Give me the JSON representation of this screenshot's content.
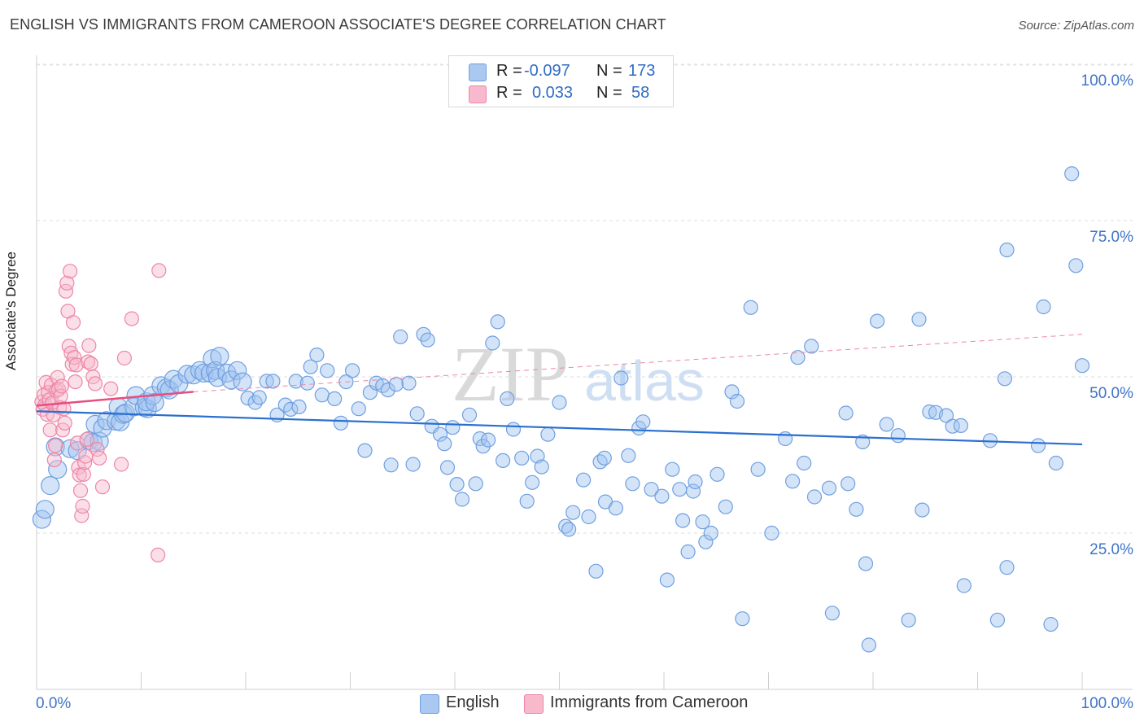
{
  "header": {
    "title": "ENGLISH VS IMMIGRANTS FROM CAMEROON ASSOCIATE'S DEGREE CORRELATION CHART",
    "source": "Source: ZipAtlas.com"
  },
  "watermark": {
    "zip": "ZIP",
    "atlas": "atlas"
  },
  "legend": {
    "rows": [
      {
        "r_label": "R =",
        "r_value": "-0.097",
        "n_label": "N =",
        "n_value": "173",
        "color": "#aac8f0"
      },
      {
        "r_label": "R =",
        "r_value": "0.033",
        "n_label": "N =",
        "n_value": "58",
        "color": "#f7b9cb"
      }
    ]
  },
  "bottom_legend": {
    "english": "English",
    "cameroon": "Immigrants from Cameroon"
  },
  "chart_data": {
    "type": "scatter",
    "title": "ENGLISH VS IMMIGRANTS FROM CAMEROON ASSOCIATE'S DEGREE CORRELATION CHART",
    "xlabel": "",
    "ylabel": "Associate's Degree",
    "xlim": [
      0,
      100
    ],
    "ylim": [
      0,
      100
    ],
    "x_tick_labels": [
      "0.0%",
      "100.0%"
    ],
    "y_tick_labels": [
      "25.0%",
      "50.0%",
      "75.0%",
      "100.0%"
    ],
    "y_ticks": [
      25,
      50,
      75,
      100
    ],
    "grid": "horizontal dashed",
    "legend_position": "top-center",
    "series": [
      {
        "name": "English",
        "color": "#6f9fe0",
        "fill": "rgba(160,195,240,0.45)",
        "trend": {
          "x0": 0,
          "y0": 44.5,
          "x1": 100,
          "y1": 39.2
        },
        "points": [
          [
            0.5,
            27.2
          ],
          [
            0.8,
            28.8
          ],
          [
            1.3,
            32.6
          ],
          [
            1.8,
            38.8
          ],
          [
            2.0,
            35.2
          ],
          [
            3.2,
            38.5
          ],
          [
            3.9,
            38.2
          ],
          [
            5.0,
            39.8
          ],
          [
            5.4,
            39.5
          ],
          [
            6.0,
            39.7
          ],
          [
            5.6,
            42.4
          ],
          [
            6.3,
            41.8
          ],
          [
            6.7,
            43.0
          ],
          [
            7.6,
            42.9
          ],
          [
            8.0,
            42.8
          ],
          [
            7.8,
            45.2
          ],
          [
            8.3,
            44.0
          ],
          [
            8.5,
            44.2
          ],
          [
            9.3,
            45.2
          ],
          [
            9.5,
            47.0
          ],
          [
            10.3,
            45.1
          ],
          [
            10.6,
            44.9
          ],
          [
            10.5,
            46.0
          ],
          [
            11.1,
            47.0
          ],
          [
            11.3,
            45.9
          ],
          [
            11.9,
            48.6
          ],
          [
            12.4,
            48.2
          ],
          [
            12.7,
            47.9
          ],
          [
            13.1,
            49.6
          ],
          [
            13.6,
            48.9
          ],
          [
            14.4,
            50.4
          ],
          [
            15.0,
            50.3
          ],
          [
            15.6,
            51.0
          ],
          [
            16.0,
            50.6
          ],
          [
            16.6,
            50.6
          ],
          [
            16.8,
            52.9
          ],
          [
            17.1,
            51.0
          ],
          [
            17.5,
            53.3
          ],
          [
            17.3,
            49.9
          ],
          [
            18.2,
            50.6
          ],
          [
            18.6,
            49.5
          ],
          [
            19.2,
            51.0
          ],
          [
            19.7,
            49.2
          ],
          [
            20.2,
            46.6
          ],
          [
            20.9,
            45.9
          ],
          [
            21.3,
            46.7
          ],
          [
            22.0,
            49.3
          ],
          [
            22.6,
            49.3
          ],
          [
            23.0,
            43.9
          ],
          [
            23.8,
            45.5
          ],
          [
            24.3,
            44.8
          ],
          [
            25.1,
            45.2
          ],
          [
            24.8,
            49.3
          ],
          [
            25.9,
            49.0
          ],
          [
            26.2,
            51.6
          ],
          [
            26.8,
            53.5
          ],
          [
            27.3,
            47.1
          ],
          [
            27.8,
            51.0
          ],
          [
            28.5,
            46.5
          ],
          [
            29.1,
            42.6
          ],
          [
            29.6,
            49.2
          ],
          [
            30.2,
            51.0
          ],
          [
            30.8,
            44.9
          ],
          [
            31.4,
            38.2
          ],
          [
            31.9,
            47.5
          ],
          [
            32.5,
            49.0
          ],
          [
            33.1,
            48.6
          ],
          [
            33.6,
            47.9
          ],
          [
            33.9,
            35.9
          ],
          [
            34.4,
            48.8
          ],
          [
            34.8,
            56.4
          ],
          [
            35.6,
            49.0
          ],
          [
            36.0,
            36.0
          ],
          [
            36.4,
            44.1
          ],
          [
            37.0,
            56.8
          ],
          [
            37.4,
            55.9
          ],
          [
            37.8,
            42.1
          ],
          [
            38.6,
            40.8
          ],
          [
            39.0,
            39.3
          ],
          [
            39.3,
            35.5
          ],
          [
            39.8,
            41.9
          ],
          [
            40.2,
            32.8
          ],
          [
            40.7,
            30.4
          ],
          [
            41.4,
            43.9
          ],
          [
            42.0,
            32.9
          ],
          [
            42.4,
            40.1
          ],
          [
            42.7,
            38.9
          ],
          [
            43.2,
            39.9
          ],
          [
            43.6,
            55.4
          ],
          [
            44.1,
            58.8
          ],
          [
            44.6,
            36.6
          ],
          [
            45.0,
            46.5
          ],
          [
            45.6,
            41.6
          ],
          [
            46.4,
            37.0
          ],
          [
            46.9,
            30.1
          ],
          [
            47.4,
            33.1
          ],
          [
            47.9,
            37.3
          ],
          [
            48.3,
            35.6
          ],
          [
            48.9,
            40.8
          ],
          [
            50.0,
            45.9
          ],
          [
            50.6,
            26.1
          ],
          [
            50.9,
            25.6
          ],
          [
            51.3,
            28.3
          ],
          [
            52.3,
            33.5
          ],
          [
            52.8,
            27.6
          ],
          [
            53.5,
            18.9
          ],
          [
            53.9,
            36.4
          ],
          [
            54.3,
            37.0
          ],
          [
            54.4,
            30.0
          ],
          [
            55.4,
            29.0
          ],
          [
            55.9,
            49.8
          ],
          [
            56.6,
            37.4
          ],
          [
            57.0,
            32.9
          ],
          [
            57.6,
            41.8
          ],
          [
            58.0,
            42.8
          ],
          [
            58.8,
            32.0
          ],
          [
            59.8,
            30.9
          ],
          [
            60.3,
            17.5
          ],
          [
            60.8,
            35.2
          ],
          [
            61.5,
            32.0
          ],
          [
            61.8,
            27.0
          ],
          [
            62.3,
            22.0
          ],
          [
            62.8,
            31.7
          ],
          [
            63.0,
            33.2
          ],
          [
            63.7,
            26.8
          ],
          [
            64.0,
            23.6
          ],
          [
            64.5,
            25.0
          ],
          [
            65.1,
            34.4
          ],
          [
            65.9,
            29.2
          ],
          [
            66.5,
            47.6
          ],
          [
            67.0,
            46.1
          ],
          [
            67.5,
            11.3
          ],
          [
            68.3,
            61.1
          ],
          [
            69.0,
            35.2
          ],
          [
            70.3,
            25.0
          ],
          [
            71.6,
            40.1
          ],
          [
            72.3,
            33.3
          ],
          [
            72.8,
            53.1
          ],
          [
            73.4,
            36.2
          ],
          [
            74.1,
            54.9
          ],
          [
            74.4,
            30.8
          ],
          [
            75.8,
            32.2
          ],
          [
            76.1,
            12.2
          ],
          [
            77.4,
            44.2
          ],
          [
            77.6,
            32.9
          ],
          [
            78.4,
            28.8
          ],
          [
            79.0,
            39.6
          ],
          [
            79.3,
            20.1
          ],
          [
            79.6,
            7.1
          ],
          [
            80.4,
            58.9
          ],
          [
            81.3,
            42.4
          ],
          [
            82.4,
            40.6
          ],
          [
            83.4,
            11.1
          ],
          [
            84.4,
            59.2
          ],
          [
            84.7,
            28.7
          ],
          [
            85.4,
            44.4
          ],
          [
            86.0,
            44.3
          ],
          [
            87.0,
            43.8
          ],
          [
            87.6,
            42.1
          ],
          [
            88.4,
            42.2
          ],
          [
            88.7,
            16.6
          ],
          [
            91.2,
            39.8
          ],
          [
            91.9,
            11.1
          ],
          [
            92.6,
            49.7
          ],
          [
            92.8,
            70.3
          ],
          [
            92.8,
            19.5
          ],
          [
            95.8,
            39.0
          ],
          [
            96.3,
            61.2
          ],
          [
            97.0,
            10.4
          ],
          [
            97.5,
            36.2
          ],
          [
            99.0,
            82.5
          ],
          [
            99.4,
            67.8
          ],
          [
            100.0,
            51.8
          ]
        ]
      },
      {
        "name": "Immigrants from Cameroon",
        "color": "#ee86a6",
        "fill": "rgba(247,185,203,0.45)",
        "trend": {
          "x0": 0,
          "y0": 45.4,
          "x1": 15,
          "y1": 47.6
        },
        "trend_dashed": {
          "x0": 15,
          "y0": 47.6,
          "x1": 100,
          "y1": 56.8
        },
        "points": [
          [
            0.5,
            46.0
          ],
          [
            0.6,
            44.8
          ],
          [
            0.7,
            47.1
          ],
          [
            0.8,
            45.5
          ],
          [
            0.9,
            49.1
          ],
          [
            1.0,
            44.0
          ],
          [
            1.1,
            47.5
          ],
          [
            1.2,
            46.3
          ],
          [
            1.3,
            41.5
          ],
          [
            1.4,
            48.7
          ],
          [
            1.5,
            45.8
          ],
          [
            1.6,
            43.9
          ],
          [
            1.7,
            36.7
          ],
          [
            1.8,
            39.0
          ],
          [
            1.9,
            47.8
          ],
          [
            2.0,
            49.9
          ],
          [
            2.1,
            48.0
          ],
          [
            2.2,
            45.1
          ],
          [
            2.3,
            46.9
          ],
          [
            2.4,
            48.5
          ],
          [
            2.5,
            41.5
          ],
          [
            2.6,
            44.9
          ],
          [
            2.7,
            42.6
          ],
          [
            2.8,
            63.7
          ],
          [
            2.9,
            65.0
          ],
          [
            3.0,
            60.5
          ],
          [
            3.1,
            54.9
          ],
          [
            3.2,
            66.9
          ],
          [
            3.3,
            53.8
          ],
          [
            3.4,
            52.0
          ],
          [
            3.5,
            58.7
          ],
          [
            3.6,
            53.1
          ],
          [
            3.7,
            49.2
          ],
          [
            3.8,
            51.9
          ],
          [
            3.9,
            39.4
          ],
          [
            4.0,
            35.5
          ],
          [
            4.1,
            34.3
          ],
          [
            4.2,
            31.8
          ],
          [
            4.3,
            27.8
          ],
          [
            4.4,
            29.3
          ],
          [
            4.5,
            34.4
          ],
          [
            4.6,
            36.3
          ],
          [
            4.7,
            37.3
          ],
          [
            4.8,
            40.0
          ],
          [
            4.9,
            52.4
          ],
          [
            5.0,
            55.0
          ],
          [
            5.2,
            52.1
          ],
          [
            5.4,
            50.0
          ],
          [
            5.6,
            48.9
          ],
          [
            5.8,
            38.4
          ],
          [
            6.0,
            37.0
          ],
          [
            6.3,
            32.4
          ],
          [
            7.1,
            48.1
          ],
          [
            8.1,
            36.0
          ],
          [
            8.4,
            53.0
          ],
          [
            9.1,
            59.3
          ],
          [
            11.6,
            21.5
          ],
          [
            11.7,
            67.0
          ]
        ]
      }
    ]
  }
}
